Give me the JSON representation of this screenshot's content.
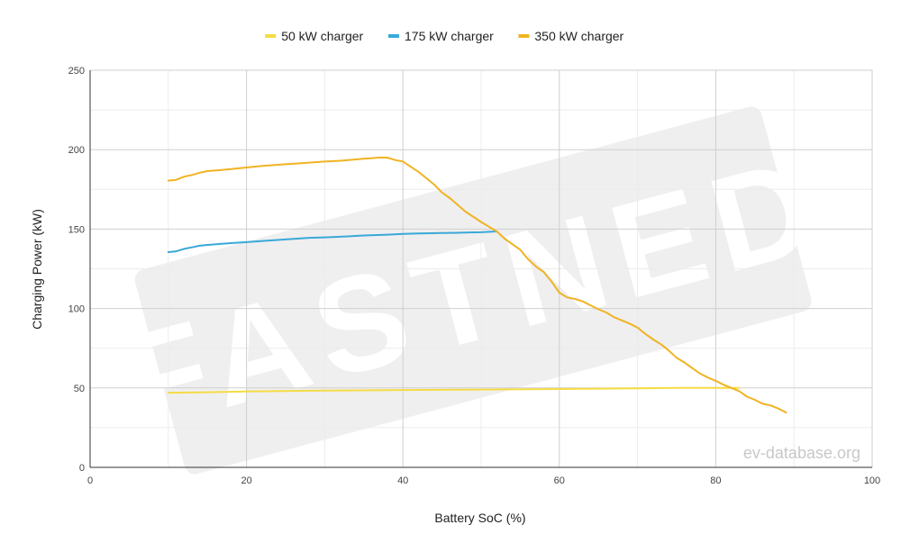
{
  "chart_data": {
    "type": "line",
    "title": "",
    "xlabel": "Battery SoC (%)",
    "ylabel": "Charging Power (kW)",
    "xlim": [
      0,
      100
    ],
    "ylim": [
      0,
      250
    ],
    "x_ticks": [
      0,
      20,
      40,
      60,
      80,
      100
    ],
    "y_ticks": [
      0,
      50,
      100,
      150,
      200,
      250
    ],
    "grid": true,
    "legend_position": "top-center",
    "watermark": "FASTNED",
    "credit": "ev-database.org",
    "series": [
      {
        "name": "50 kW charger",
        "color": "#f5dc44",
        "points": [
          [
            10,
            47
          ],
          [
            15,
            47.3
          ],
          [
            20,
            47.8
          ],
          [
            30,
            48.3
          ],
          [
            40,
            48.7
          ],
          [
            50,
            49
          ],
          [
            60,
            49.3
          ],
          [
            70,
            49.7
          ],
          [
            75,
            50
          ],
          [
            83,
            50
          ]
        ]
      },
      {
        "name": "175 kW charger",
        "color": "#3aa8d8",
        "points": [
          [
            10,
            135.5
          ],
          [
            11,
            136
          ],
          [
            12,
            137.5
          ],
          [
            13,
            138.5
          ],
          [
            14,
            139.5
          ],
          [
            15,
            140
          ],
          [
            17,
            140.8
          ],
          [
            20,
            141.8
          ],
          [
            22,
            142.5
          ],
          [
            25,
            143.5
          ],
          [
            28,
            144.5
          ],
          [
            30,
            144.8
          ],
          [
            32,
            145.2
          ],
          [
            35,
            146
          ],
          [
            38,
            146.5
          ],
          [
            40,
            147
          ],
          [
            42,
            147.3
          ],
          [
            45,
            147.5
          ],
          [
            48,
            147.8
          ],
          [
            50,
            148
          ],
          [
            52,
            148.5
          ]
        ]
      },
      {
        "name": "350 kW charger",
        "color": "#f0b323",
        "points": [
          [
            10,
            180.5
          ],
          [
            11,
            181
          ],
          [
            12,
            183
          ],
          [
            13,
            184
          ],
          [
            14,
            185.5
          ],
          [
            15,
            186.5
          ],
          [
            17,
            187.3
          ],
          [
            20,
            188.8
          ],
          [
            22,
            189.8
          ],
          [
            25,
            190.8
          ],
          [
            27,
            191.5
          ],
          [
            30,
            192.5
          ],
          [
            32,
            193
          ],
          [
            35,
            194.3
          ],
          [
            37,
            195
          ],
          [
            38,
            195
          ],
          [
            39,
            193.5
          ],
          [
            40,
            192.5
          ],
          [
            42,
            186
          ],
          [
            44,
            178
          ],
          [
            45,
            173
          ],
          [
            46,
            169.5
          ],
          [
            48,
            161
          ],
          [
            50,
            154.5
          ],
          [
            51,
            151.5
          ],
          [
            52,
            148.5
          ],
          [
            53,
            144
          ],
          [
            54,
            140.5
          ],
          [
            55,
            137
          ],
          [
            56,
            131
          ],
          [
            57,
            126.5
          ],
          [
            58,
            123
          ],
          [
            59,
            117
          ],
          [
            60,
            110
          ],
          [
            61,
            107
          ],
          [
            62,
            106
          ],
          [
            63,
            104.5
          ],
          [
            64,
            102
          ],
          [
            65,
            99.5
          ],
          [
            66,
            97.5
          ],
          [
            67,
            94.5
          ],
          [
            68,
            92.5
          ],
          [
            69,
            90.5
          ],
          [
            70,
            88
          ],
          [
            71,
            84
          ],
          [
            72,
            80.5
          ],
          [
            73,
            77.5
          ],
          [
            74,
            73.5
          ],
          [
            75,
            69
          ],
          [
            76,
            66
          ],
          [
            77,
            62.5
          ],
          [
            78,
            59
          ],
          [
            79,
            56.5
          ],
          [
            80,
            54.5
          ],
          [
            81,
            52
          ],
          [
            82,
            50
          ],
          [
            83,
            48
          ],
          [
            84,
            44.5
          ],
          [
            85,
            42.5
          ],
          [
            86,
            40
          ],
          [
            87,
            39
          ],
          [
            88,
            37
          ],
          [
            89,
            34.5
          ]
        ]
      }
    ]
  }
}
